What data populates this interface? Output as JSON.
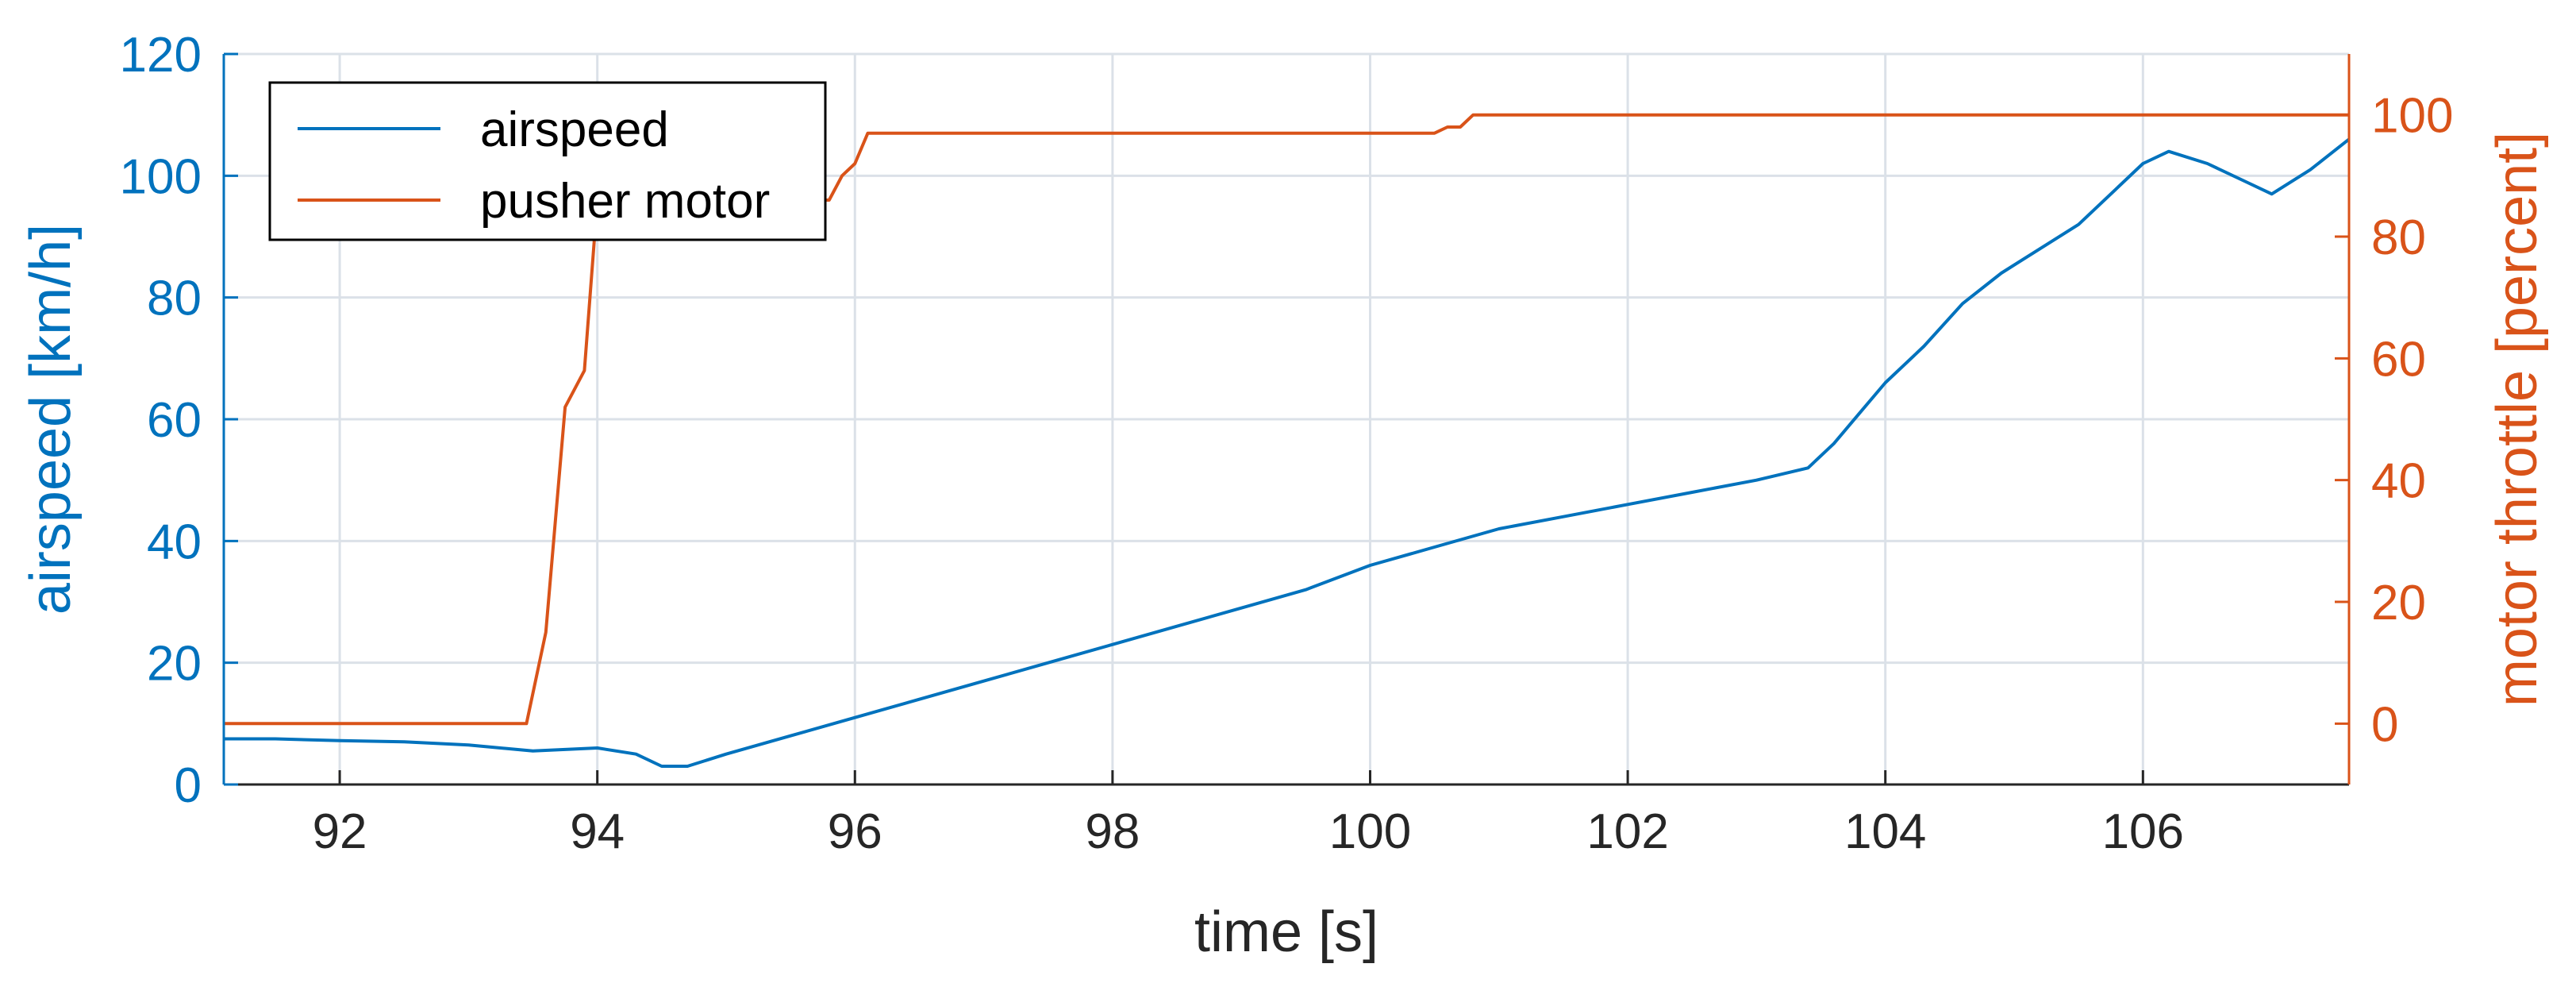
{
  "chart_data": {
    "type": "line",
    "xlabel": "time [s]",
    "ylabel_left": "airspeed [km/h]",
    "ylabel_right": "motor throttle [percent]",
    "xlim": [
      91.1,
      107.6
    ],
    "ylim_left": [
      0,
      120
    ],
    "ylim_right": [
      -10,
      110
    ],
    "x_ticks": [
      92,
      94,
      96,
      98,
      100,
      102,
      104,
      106
    ],
    "y_left_ticks": [
      0,
      20,
      40,
      60,
      80,
      100,
      120
    ],
    "y_right_ticks": [
      0,
      20,
      40,
      60,
      80,
      100
    ],
    "grid": true,
    "legend_position": "top-left",
    "colors": {
      "airspeed": "#0072BD",
      "pusher_motor": "#D95319",
      "grid": "#dbe1e8",
      "axis": "#262626"
    },
    "series": [
      {
        "name": "airspeed",
        "axis": "left",
        "x": [
          91.1,
          91.5,
          92.0,
          92.5,
          93.0,
          93.5,
          94.0,
          94.3,
          94.5,
          94.7,
          95.0,
          95.5,
          96.0,
          96.5,
          97.0,
          97.5,
          98.0,
          98.5,
          99.0,
          99.5,
          100.0,
          100.5,
          101.0,
          101.5,
          102.0,
          102.5,
          103.0,
          103.4,
          103.6,
          103.8,
          104.0,
          104.3,
          104.6,
          104.9,
          105.2,
          105.5,
          105.8,
          106.0,
          106.2,
          106.5,
          106.8,
          107.0,
          107.3,
          107.6
        ],
        "values": [
          7.5,
          7.5,
          7.2,
          7,
          6.5,
          5.5,
          6,
          5,
          3,
          3,
          5,
          8,
          11,
          14,
          17,
          20,
          23,
          26,
          29,
          32,
          36,
          39,
          42,
          44,
          46,
          48,
          50,
          52,
          56,
          61,
          66,
          72,
          79,
          84,
          88,
          92,
          98,
          102,
          104,
          102,
          99,
          97,
          101,
          106
        ]
      },
      {
        "name": "pusher motor",
        "axis": "right",
        "x": [
          91.1,
          93.45,
          93.6,
          93.75,
          93.9,
          94.0,
          94.05,
          95.8,
          95.9,
          96.0,
          96.1,
          96.2,
          100.5,
          100.6,
          100.7,
          100.8,
          107.6
        ],
        "values": [
          0,
          0,
          15,
          52,
          58,
          86,
          86,
          86,
          90,
          92,
          97,
          97,
          97,
          98,
          98,
          100,
          100
        ]
      }
    ]
  }
}
